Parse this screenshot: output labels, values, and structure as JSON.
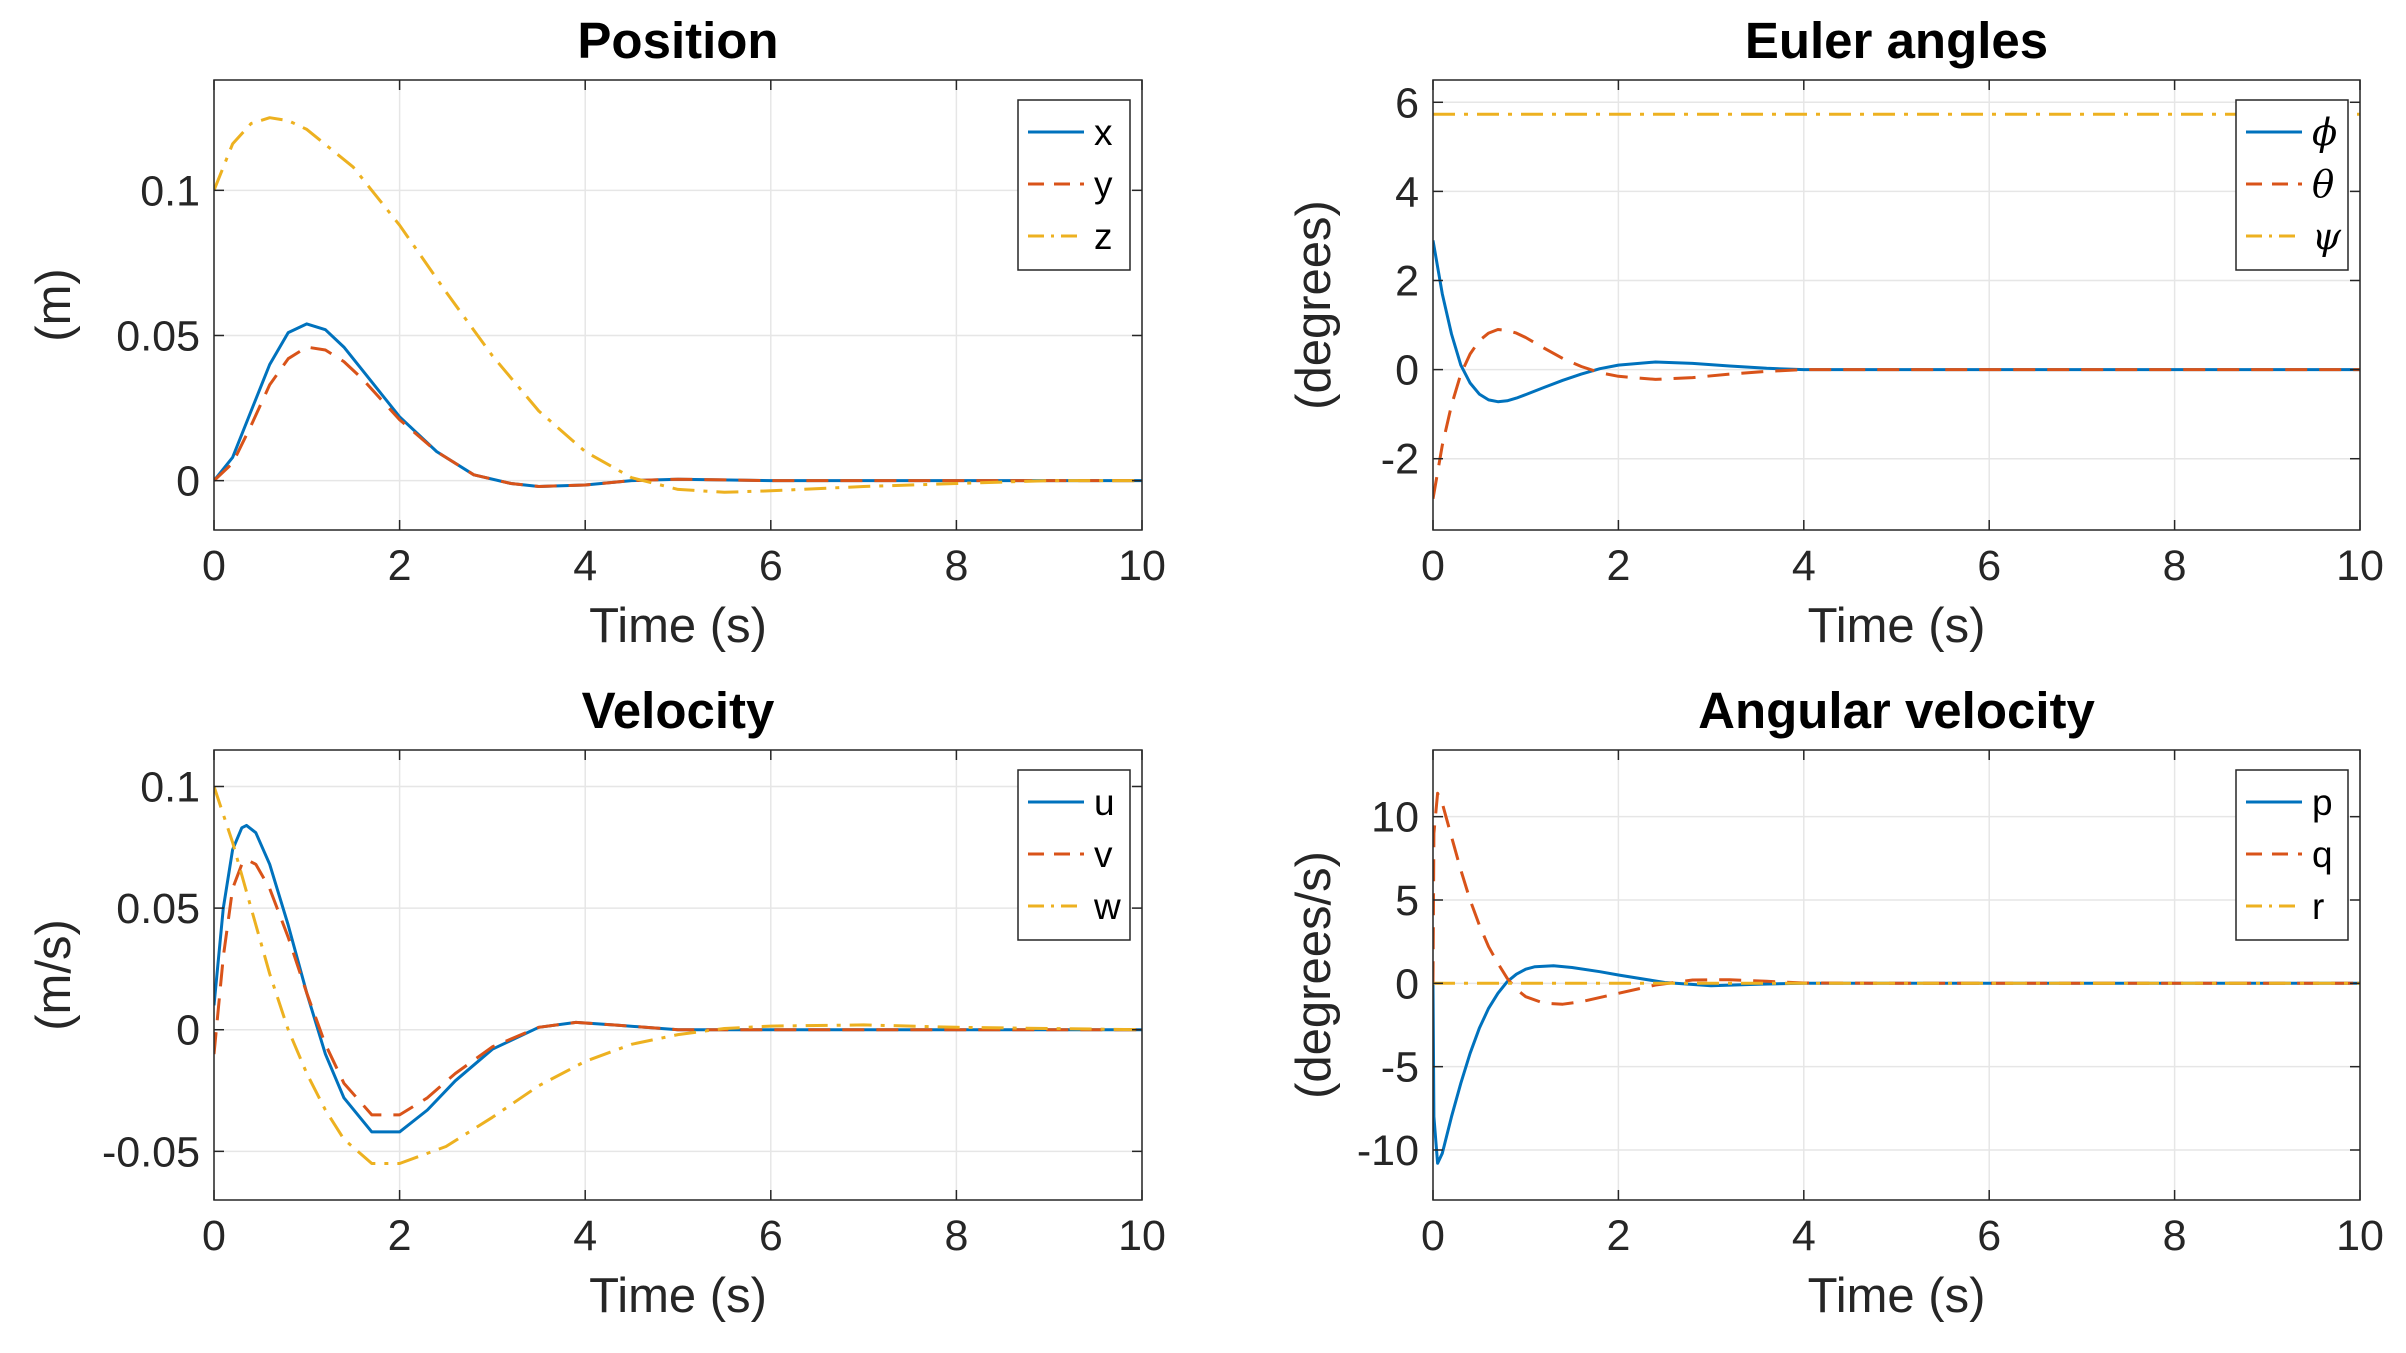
{
  "colors": {
    "c1": "#0072BD",
    "c2": "#D95319",
    "c3": "#EDB120"
  },
  "chart_data": [
    {
      "type": "line",
      "title": "Position",
      "xlabel": "Time (s)",
      "ylabel": "(m)",
      "xlim": [
        0,
        10
      ],
      "ylim": [
        -0.017,
        0.138
      ],
      "xticks": [
        0,
        2,
        4,
        6,
        8,
        10
      ],
      "xtick_labels": [
        "0",
        "2",
        "4",
        "6",
        "8",
        "10"
      ],
      "yticks": [
        0,
        0.05,
        0.1
      ],
      "ytick_labels": [
        "0",
        "0.05",
        "0.1"
      ],
      "legend_position": "top-right",
      "series": [
        {
          "name": "x",
          "style": "solid",
          "color": "#0072BD",
          "x": [
            0,
            0.2,
            0.4,
            0.6,
            0.8,
            1.0,
            1.2,
            1.4,
            1.6,
            1.8,
            2.0,
            2.4,
            2.8,
            3.2,
            3.5,
            4.0,
            4.5,
            5.0,
            6.0,
            8.0,
            10.0
          ],
          "y": [
            0,
            0.008,
            0.024,
            0.04,
            0.051,
            0.054,
            0.052,
            0.046,
            0.038,
            0.03,
            0.022,
            0.01,
            0.002,
            -0.001,
            -0.002,
            -0.0015,
            0,
            0.0005,
            0,
            0,
            0
          ]
        },
        {
          "name": "y",
          "style": "dashed",
          "color": "#D95319",
          "x": [
            0,
            0.2,
            0.4,
            0.6,
            0.8,
            1.0,
            1.2,
            1.4,
            1.6,
            1.8,
            2.0,
            2.4,
            2.8,
            3.2,
            3.5,
            4.0,
            4.5,
            5.0,
            6.0,
            8.0,
            10.0
          ],
          "y": [
            0,
            0.006,
            0.019,
            0.033,
            0.042,
            0.046,
            0.045,
            0.041,
            0.035,
            0.028,
            0.021,
            0.01,
            0.002,
            -0.001,
            -0.002,
            -0.0015,
            0,
            0.0005,
            0,
            0,
            0
          ]
        },
        {
          "name": "z",
          "style": "dashdot",
          "color": "#EDB120",
          "x": [
            0,
            0.2,
            0.4,
            0.6,
            0.8,
            1.0,
            1.5,
            2.0,
            2.5,
            3.0,
            3.5,
            4.0,
            4.5,
            5.0,
            5.5,
            6.0,
            7.0,
            8.0,
            9.0,
            10.0
          ],
          "y": [
            0.1,
            0.116,
            0.123,
            0.125,
            0.124,
            0.121,
            0.108,
            0.088,
            0.065,
            0.043,
            0.024,
            0.01,
            0.001,
            -0.003,
            -0.004,
            -0.0035,
            -0.002,
            -0.001,
            0,
            0
          ]
        }
      ]
    },
    {
      "type": "line",
      "title": "Euler angles",
      "xlabel": "Time (s)",
      "ylabel": "(degrees)",
      "xlim": [
        0,
        10
      ],
      "ylim": [
        -3.6,
        6.5
      ],
      "xticks": [
        0,
        2,
        4,
        6,
        8,
        10
      ],
      "xtick_labels": [
        "0",
        "2",
        "4",
        "6",
        "8",
        "10"
      ],
      "yticks": [
        -2,
        0,
        2,
        4,
        6
      ],
      "ytick_labels": [
        "-2",
        "0",
        "2",
        "4",
        "6"
      ],
      "legend_position": "top-right",
      "legend_math": true,
      "series": [
        {
          "name": "ϕ",
          "style": "solid",
          "color": "#0072BD",
          "x": [
            0,
            0.1,
            0.2,
            0.3,
            0.4,
            0.5,
            0.6,
            0.7,
            0.8,
            0.9,
            1.0,
            1.2,
            1.4,
            1.6,
            1.8,
            2.0,
            2.4,
            2.8,
            3.2,
            3.6,
            4.0,
            5.0,
            10.0
          ],
          "y": [
            2.9,
            1.7,
            0.8,
            0.1,
            -0.3,
            -0.55,
            -0.68,
            -0.72,
            -0.7,
            -0.64,
            -0.56,
            -0.4,
            -0.24,
            -0.1,
            0.02,
            0.1,
            0.17,
            0.14,
            0.08,
            0.03,
            0,
            0,
            0
          ]
        },
        {
          "name": "θ",
          "style": "dashed",
          "color": "#D95319",
          "x": [
            0,
            0.1,
            0.2,
            0.3,
            0.4,
            0.5,
            0.6,
            0.7,
            0.8,
            0.9,
            1.0,
            1.2,
            1.4,
            1.6,
            1.8,
            2.0,
            2.4,
            2.8,
            3.2,
            3.6,
            4.0,
            5.0,
            10.0
          ],
          "y": [
            -2.9,
            -1.7,
            -0.8,
            -0.1,
            0.35,
            0.65,
            0.82,
            0.9,
            0.88,
            0.82,
            0.72,
            0.48,
            0.25,
            0.07,
            -0.07,
            -0.15,
            -0.22,
            -0.18,
            -0.1,
            -0.04,
            0,
            0,
            0
          ]
        },
        {
          "name": "ψ",
          "style": "dashdot",
          "color": "#EDB120",
          "x": [
            0,
            10
          ],
          "y": [
            5.73,
            5.73
          ]
        }
      ]
    },
    {
      "type": "line",
      "title": "Velocity",
      "xlabel": "Time (s)",
      "ylabel": "(m/s)",
      "xlim": [
        0,
        10
      ],
      "ylim": [
        -0.07,
        0.115
      ],
      "xticks": [
        0,
        2,
        4,
        6,
        8,
        10
      ],
      "xtick_labels": [
        "0",
        "2",
        "4",
        "6",
        "8",
        "10"
      ],
      "yticks": [
        -0.05,
        0,
        0.05,
        0.1
      ],
      "ytick_labels": [
        "-0.05",
        "0",
        "0.05",
        "0.1"
      ],
      "legend_position": "top-right",
      "series": [
        {
          "name": "u",
          "style": "solid",
          "color": "#0072BD",
          "x": [
            0,
            0.1,
            0.2,
            0.3,
            0.35,
            0.45,
            0.6,
            0.8,
            1.0,
            1.2,
            1.4,
            1.7,
            2.0,
            2.3,
            2.6,
            3.0,
            3.5,
            3.9,
            4.3,
            5.0,
            6.0,
            8.0,
            10.0
          ],
          "y": [
            0.01,
            0.05,
            0.074,
            0.083,
            0.084,
            0.081,
            0.068,
            0.043,
            0.015,
            -0.01,
            -0.028,
            -0.042,
            -0.042,
            -0.033,
            -0.021,
            -0.008,
            0.001,
            0.003,
            0.002,
            0,
            0,
            0,
            0
          ]
        },
        {
          "name": "v",
          "style": "dashed",
          "color": "#D95319",
          "x": [
            0,
            0.1,
            0.2,
            0.3,
            0.35,
            0.45,
            0.6,
            0.8,
            1.0,
            1.2,
            1.4,
            1.7,
            2.0,
            2.3,
            2.6,
            3.0,
            3.5,
            3.9,
            4.3,
            5.0,
            6.0,
            8.0,
            10.0
          ],
          "y": [
            -0.01,
            0.03,
            0.058,
            0.068,
            0.07,
            0.068,
            0.058,
            0.038,
            0.015,
            -0.006,
            -0.022,
            -0.035,
            -0.035,
            -0.028,
            -0.018,
            -0.007,
            0.001,
            0.003,
            0.002,
            0,
            0,
            0,
            0
          ]
        },
        {
          "name": "w",
          "style": "dashdot",
          "color": "#EDB120",
          "x": [
            0,
            0.2,
            0.4,
            0.6,
            0.8,
            1.0,
            1.2,
            1.4,
            1.7,
            2.0,
            2.5,
            3.0,
            3.5,
            4.0,
            4.5,
            5.0,
            5.5,
            6.0,
            7.0,
            8.0,
            10.0
          ],
          "y": [
            0.1,
            0.077,
            0.05,
            0.023,
            0,
            -0.018,
            -0.033,
            -0.045,
            -0.055,
            -0.055,
            -0.048,
            -0.036,
            -0.023,
            -0.013,
            -0.006,
            -0.002,
            0.0005,
            0.0015,
            0.002,
            0.001,
            0
          ]
        }
      ]
    },
    {
      "type": "line",
      "title": "Angular velocity",
      "xlabel": "Time (s)",
      "ylabel": "(degrees/s)",
      "xlim": [
        0,
        10
      ],
      "ylim": [
        -13,
        14
      ],
      "xticks": [
        0,
        2,
        4,
        6,
        8,
        10
      ],
      "xtick_labels": [
        "0",
        "2",
        "4",
        "6",
        "8",
        "10"
      ],
      "yticks": [
        -10,
        -5,
        0,
        5,
        10
      ],
      "ytick_labels": [
        "-10",
        "-5",
        "0",
        "5",
        "10"
      ],
      "legend_position": "top-right",
      "series": [
        {
          "name": "p",
          "style": "solid",
          "color": "#0072BD",
          "x": [
            0,
            0.01,
            0.05,
            0.1,
            0.2,
            0.3,
            0.4,
            0.5,
            0.6,
            0.7,
            0.8,
            0.9,
            1.0,
            1.1,
            1.3,
            1.5,
            1.8,
            2.0,
            2.5,
            3.0,
            3.5,
            4.0,
            5.0,
            10.0
          ],
          "y": [
            0,
            -8,
            -10.8,
            -10.2,
            -8,
            -6,
            -4.2,
            -2.7,
            -1.5,
            -0.6,
            0.1,
            0.55,
            0.85,
            1.0,
            1.05,
            0.95,
            0.7,
            0.5,
            0.05,
            -0.15,
            -0.05,
            0,
            0,
            0
          ]
        },
        {
          "name": "q",
          "style": "dashed",
          "color": "#D95319",
          "x": [
            0,
            0.01,
            0.05,
            0.1,
            0.2,
            0.3,
            0.4,
            0.5,
            0.6,
            0.7,
            0.8,
            0.9,
            1.0,
            1.2,
            1.4,
            1.6,
            2.0,
            2.4,
            2.8,
            3.2,
            3.6,
            4.0,
            5.0,
            10.0
          ],
          "y": [
            0,
            9,
            11.4,
            10.8,
            8.8,
            6.8,
            5,
            3.5,
            2.2,
            1.2,
            0.3,
            -0.35,
            -0.8,
            -1.2,
            -1.25,
            -1.1,
            -0.6,
            -0.1,
            0.2,
            0.22,
            0.12,
            0.02,
            0,
            0
          ]
        },
        {
          "name": "r",
          "style": "dashdot",
          "color": "#EDB120",
          "x": [
            0,
            10
          ],
          "y": [
            0,
            0
          ]
        }
      ]
    }
  ]
}
